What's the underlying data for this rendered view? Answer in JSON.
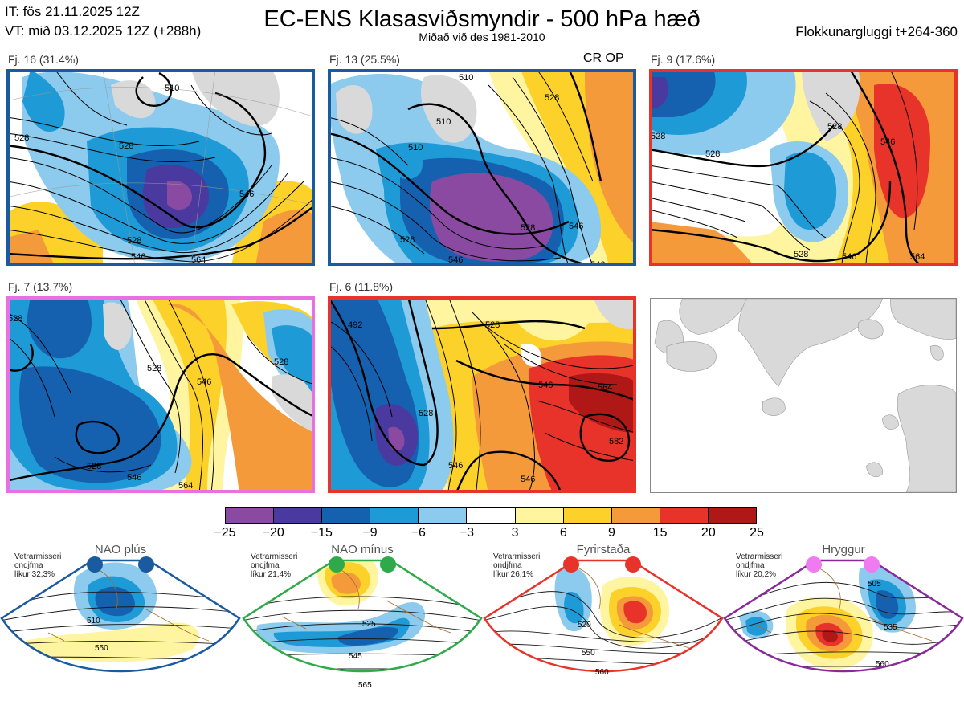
{
  "header": {
    "issue_time": "IT: fös 21.11.2025 12Z",
    "valid_time": "VT: mið 03.12.2025 12Z  (+288h)",
    "title": "EC-ENS Klasasviðsmyndir - 500 hPa hæð",
    "subtitle": "Miðað við des 1981-2010",
    "window": "Flokkunargluggi t+264-360"
  },
  "panels": [
    {
      "label": "Fj. 16 (31.4%)",
      "border": "#1a5aa0",
      "contours": [
        "510",
        "528",
        "528",
        "546",
        "564",
        "546"
      ],
      "tag": ""
    },
    {
      "label": "Fj. 13 (25.5%)",
      "border": "#1a5aa0",
      "contours": [
        "510",
        "510",
        "528",
        "528",
        "546",
        "546",
        "546"
      ],
      "tag": "CR OP"
    },
    {
      "label": "Fj. 9 (17.6%)",
      "border": "#e8332a",
      "contours": [
        "528",
        "528",
        "546",
        "546",
        "564"
      ],
      "tag": ""
    },
    {
      "label": "Fj. 7 (13.7%)",
      "border": "#e870e0",
      "contours": [
        "528",
        "528",
        "546",
        "546",
        "564"
      ],
      "tag": ""
    },
    {
      "label": "Fj. 6 (11.8%)",
      "border": "#e8332a",
      "contours": [
        "492",
        "528",
        "528",
        "546",
        "546",
        "564",
        "582",
        "546"
      ],
      "tag": ""
    }
  ],
  "colorbar": {
    "colors": [
      "#8b4aa2",
      "#4a3aa0",
      "#1660b0",
      "#1e9ad6",
      "#8ccaee",
      "#ffffff",
      "#fff4a0",
      "#fcd22a",
      "#f59a3a",
      "#e8332a",
      "#b01818"
    ],
    "ticks": [
      "−25",
      "−20",
      "−15",
      "−9",
      "−6",
      "−3",
      "3",
      "6",
      "9",
      "15",
      "20",
      "25"
    ]
  },
  "regimes": [
    {
      "name": "NAO plús",
      "note": [
        "Vetrarmisseri",
        "ondjfma",
        "líkur 32,3%"
      ],
      "border": "#1a5aa0",
      "dot": "#1a5aa0",
      "contours": [
        "510",
        "550"
      ]
    },
    {
      "name": "NAO mínus",
      "note": [
        "Vetrarmisseri",
        "ondjfma",
        "líkur 21,4%"
      ],
      "border": "#2eaa4a",
      "dot": "#2eaa4a",
      "contours": [
        "525",
        "545",
        "565"
      ]
    },
    {
      "name": "Fyrirstaða",
      "note": [
        "Vetrarmisseri",
        "ondjfma",
        "líkur 26,1%"
      ],
      "border": "#e8332a",
      "dot": "#e8332a",
      "contours": [
        "520",
        "550",
        "560"
      ]
    },
    {
      "name": "Hryggur",
      "note": [
        "Vetrarmisseri",
        "ondjfma",
        "líkur 20,2%"
      ],
      "border": "#8a2a9a",
      "dot": "#f07af0",
      "contours": [
        "505",
        "535",
        "560"
      ]
    }
  ]
}
